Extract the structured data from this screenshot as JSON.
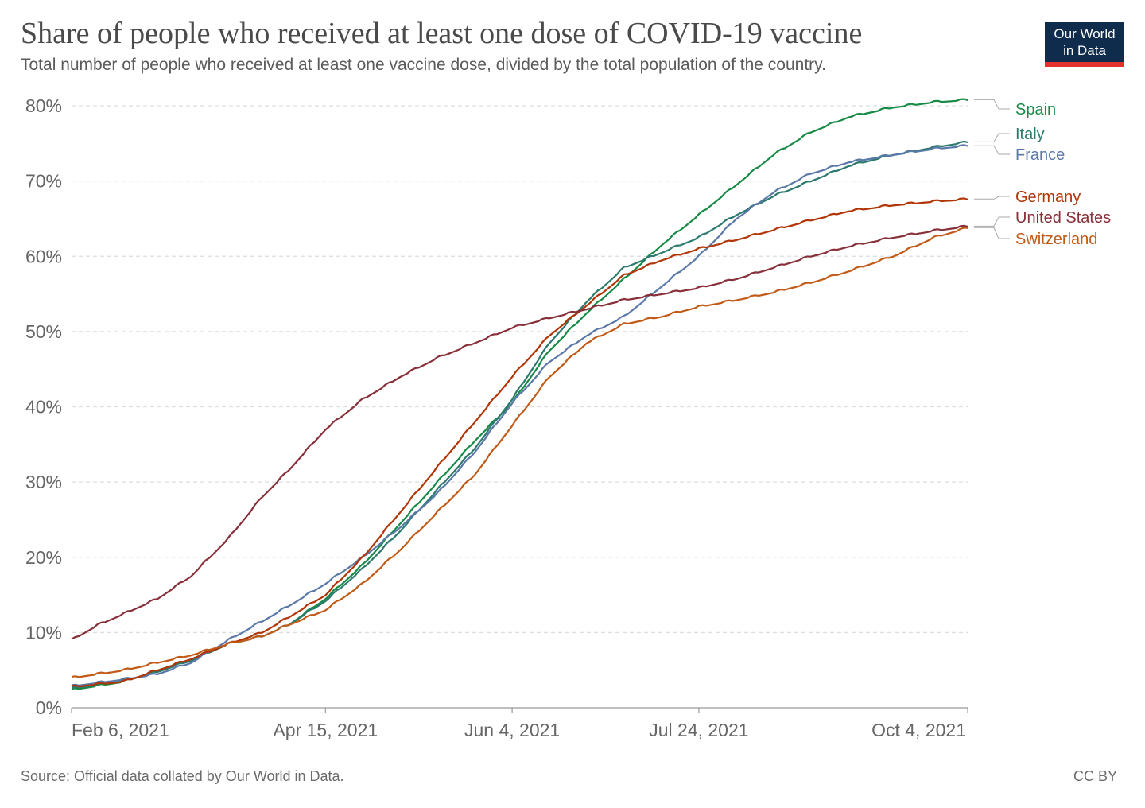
{
  "header": {
    "title": "Share of people who received at least one dose of COVID-19 vaccine",
    "subtitle": "Total number of people who received at least one vaccine dose, divided by the total population of the country."
  },
  "logo": {
    "line1": "Our World",
    "line2": "in Data"
  },
  "footer": {
    "source": "Source: Official data collated by Our World in Data.",
    "license": "CC BY"
  },
  "colors": {
    "grid": "#dddddd",
    "axis": "#999999",
    "text": "#666666",
    "logo_bg": "#0f2c4c",
    "logo_accent": "#e3312b"
  },
  "chart_data": {
    "type": "line",
    "title": "Share of people who received at least one dose of COVID-19 vaccine",
    "subtitle": "Total number of people who received at least one vaccine dose, divided by the total population of the country.",
    "xlabel": "",
    "ylabel": "",
    "xlim": [
      "2021-02-06",
      "2021-10-04"
    ],
    "ylim": [
      0,
      80
    ],
    "y_ticks": [
      {
        "value": 0,
        "label": "0%"
      },
      {
        "value": 10,
        "label": "10%"
      },
      {
        "value": 20,
        "label": "20%"
      },
      {
        "value": 30,
        "label": "30%"
      },
      {
        "value": 40,
        "label": "40%"
      },
      {
        "value": 50,
        "label": "50%"
      },
      {
        "value": 60,
        "label": "60%"
      },
      {
        "value": 70,
        "label": "70%"
      },
      {
        "value": 80,
        "label": "80%"
      }
    ],
    "x_ticks": [
      {
        "date": "2021-02-06",
        "label": "Feb 6, 2021"
      },
      {
        "date": "2021-04-15",
        "label": "Apr 15, 2021"
      },
      {
        "date": "2021-06-04",
        "label": "Jun 4, 2021"
      },
      {
        "date": "2021-07-24",
        "label": "Jul 24, 2021"
      },
      {
        "date": "2021-10-04",
        "label": "Oct 4, 2021"
      }
    ],
    "grid": true,
    "legend_position": "right (labels at line ends)",
    "series": [
      {
        "name": "Spain",
        "color": "#178a46",
        "points": [
          [
            "2021-02-06",
            2.4
          ],
          [
            "2021-02-20",
            3.5
          ],
          [
            "2021-03-01",
            5.0
          ],
          [
            "2021-03-10",
            6.5
          ],
          [
            "2021-03-20",
            8.5
          ],
          [
            "2021-03-29",
            9.5
          ],
          [
            "2021-04-05",
            11.0
          ],
          [
            "2021-04-15",
            14.5
          ],
          [
            "2021-04-25",
            19.0
          ],
          [
            "2021-05-05",
            24.5
          ],
          [
            "2021-05-15",
            30.0
          ],
          [
            "2021-05-25",
            35.5
          ],
          [
            "2021-06-04",
            40.5
          ],
          [
            "2021-06-14",
            47.5
          ],
          [
            "2021-06-24",
            52.5
          ],
          [
            "2021-07-04",
            57.0
          ],
          [
            "2021-07-14",
            61.5
          ],
          [
            "2021-07-24",
            65.5
          ],
          [
            "2021-08-03",
            69.5
          ],
          [
            "2021-08-13",
            73.5
          ],
          [
            "2021-08-23",
            76.5
          ],
          [
            "2021-09-02",
            78.5
          ],
          [
            "2021-09-14",
            79.8
          ],
          [
            "2021-09-25",
            80.5
          ],
          [
            "2021-10-04",
            80.8
          ]
        ]
      },
      {
        "name": "Italy",
        "color": "#2c7a6e",
        "points": [
          [
            "2021-02-06",
            2.6
          ],
          [
            "2021-02-20",
            3.6
          ],
          [
            "2021-03-01",
            4.8
          ],
          [
            "2021-03-10",
            6.3
          ],
          [
            "2021-03-20",
            8.5
          ],
          [
            "2021-03-29",
            9.5
          ],
          [
            "2021-04-05",
            11.0
          ],
          [
            "2021-04-15",
            14.2
          ],
          [
            "2021-04-25",
            18.5
          ],
          [
            "2021-05-05",
            23.5
          ],
          [
            "2021-05-15",
            29.0
          ],
          [
            "2021-05-25",
            34.5
          ],
          [
            "2021-06-04",
            41.0
          ],
          [
            "2021-06-14",
            48.5
          ],
          [
            "2021-06-24",
            54.0
          ],
          [
            "2021-07-04",
            58.5
          ],
          [
            "2021-07-14",
            60.5
          ],
          [
            "2021-07-24",
            62.5
          ],
          [
            "2021-08-03",
            65.5
          ],
          [
            "2021-08-13",
            68.0
          ],
          [
            "2021-08-23",
            70.0
          ],
          [
            "2021-09-02",
            72.0
          ],
          [
            "2021-09-14",
            73.5
          ],
          [
            "2021-09-25",
            74.5
          ],
          [
            "2021-10-04",
            75.2
          ]
        ]
      },
      {
        "name": "France",
        "color": "#5b79a8",
        "points": [
          [
            "2021-02-06",
            2.9
          ],
          [
            "2021-02-20",
            3.8
          ],
          [
            "2021-03-01",
            4.5
          ],
          [
            "2021-03-10",
            6.0
          ],
          [
            "2021-03-20",
            9.0
          ],
          [
            "2021-03-29",
            11.5
          ],
          [
            "2021-04-05",
            13.5
          ],
          [
            "2021-04-15",
            16.5
          ],
          [
            "2021-04-25",
            20.0
          ],
          [
            "2021-05-05",
            24.0
          ],
          [
            "2021-05-15",
            28.5
          ],
          [
            "2021-05-25",
            34.0
          ],
          [
            "2021-06-04",
            40.5
          ],
          [
            "2021-06-14",
            46.0
          ],
          [
            "2021-06-24",
            49.5
          ],
          [
            "2021-07-04",
            52.0
          ],
          [
            "2021-07-14",
            56.0
          ],
          [
            "2021-07-24",
            60.0
          ],
          [
            "2021-08-03",
            65.0
          ],
          [
            "2021-08-13",
            68.5
          ],
          [
            "2021-08-23",
            71.0
          ],
          [
            "2021-09-02",
            72.5
          ],
          [
            "2021-09-14",
            73.5
          ],
          [
            "2021-09-25",
            74.3
          ],
          [
            "2021-10-04",
            74.7
          ]
        ]
      },
      {
        "name": "Germany",
        "color": "#b13507",
        "points": [
          [
            "2021-02-06",
            2.8
          ],
          [
            "2021-02-20",
            3.5
          ],
          [
            "2021-03-01",
            5.0
          ],
          [
            "2021-03-10",
            6.5
          ],
          [
            "2021-03-20",
            8.5
          ],
          [
            "2021-03-29",
            10.0
          ],
          [
            "2021-04-05",
            12.0
          ],
          [
            "2021-04-15",
            15.0
          ],
          [
            "2021-04-25",
            20.0
          ],
          [
            "2021-05-05",
            26.0
          ],
          [
            "2021-05-15",
            32.0
          ],
          [
            "2021-05-25",
            38.0
          ],
          [
            "2021-06-04",
            44.0
          ],
          [
            "2021-06-14",
            49.5
          ],
          [
            "2021-06-24",
            53.5
          ],
          [
            "2021-07-04",
            57.5
          ],
          [
            "2021-07-14",
            59.5
          ],
          [
            "2021-07-24",
            61.0
          ],
          [
            "2021-08-03",
            62.2
          ],
          [
            "2021-08-13",
            63.5
          ],
          [
            "2021-08-23",
            64.8
          ],
          [
            "2021-09-02",
            66.0
          ],
          [
            "2021-09-14",
            66.8
          ],
          [
            "2021-09-25",
            67.3
          ],
          [
            "2021-10-04",
            67.6
          ]
        ]
      },
      {
        "name": "United States",
        "color": "#883039",
        "points": [
          [
            "2021-02-06",
            9.0
          ],
          [
            "2021-02-13",
            11.0
          ],
          [
            "2021-02-20",
            12.5
          ],
          [
            "2021-03-01",
            14.5
          ],
          [
            "2021-03-10",
            17.5
          ],
          [
            "2021-03-20",
            22.5
          ],
          [
            "2021-03-29",
            28.0
          ],
          [
            "2021-04-05",
            31.5
          ],
          [
            "2021-04-15",
            37.0
          ],
          [
            "2021-04-25",
            41.0
          ],
          [
            "2021-05-05",
            44.0
          ],
          [
            "2021-05-15",
            46.5
          ],
          [
            "2021-05-25",
            48.5
          ],
          [
            "2021-06-04",
            50.5
          ],
          [
            "2021-06-14",
            51.8
          ],
          [
            "2021-06-24",
            53.0
          ],
          [
            "2021-07-04",
            54.2
          ],
          [
            "2021-07-14",
            55.0
          ],
          [
            "2021-07-24",
            55.8
          ],
          [
            "2021-08-03",
            57.0
          ],
          [
            "2021-08-13",
            58.5
          ],
          [
            "2021-08-23",
            60.0
          ],
          [
            "2021-09-02",
            61.3
          ],
          [
            "2021-09-14",
            62.5
          ],
          [
            "2021-09-25",
            63.4
          ],
          [
            "2021-10-04",
            64.0
          ]
        ]
      },
      {
        "name": "Switzerland",
        "color": "#c15a17",
        "points": [
          [
            "2021-02-06",
            4.0
          ],
          [
            "2021-02-20",
            5.0
          ],
          [
            "2021-03-01",
            6.0
          ],
          [
            "2021-03-10",
            7.0
          ],
          [
            "2021-03-20",
            8.5
          ],
          [
            "2021-03-29",
            9.5
          ],
          [
            "2021-04-05",
            11.0
          ],
          [
            "2021-04-15",
            13.0
          ],
          [
            "2021-04-25",
            16.5
          ],
          [
            "2021-05-05",
            21.0
          ],
          [
            "2021-05-15",
            26.0
          ],
          [
            "2021-05-25",
            31.0
          ],
          [
            "2021-06-04",
            37.5
          ],
          [
            "2021-06-14",
            44.0
          ],
          [
            "2021-06-24",
            48.5
          ],
          [
            "2021-07-04",
            51.0
          ],
          [
            "2021-07-14",
            52.0
          ],
          [
            "2021-07-24",
            53.3
          ],
          [
            "2021-08-03",
            54.2
          ],
          [
            "2021-08-13",
            55.2
          ],
          [
            "2021-08-23",
            56.5
          ],
          [
            "2021-09-02",
            58.0
          ],
          [
            "2021-09-14",
            60.0
          ],
          [
            "2021-09-25",
            62.5
          ],
          [
            "2021-10-04",
            63.8
          ]
        ]
      }
    ]
  }
}
